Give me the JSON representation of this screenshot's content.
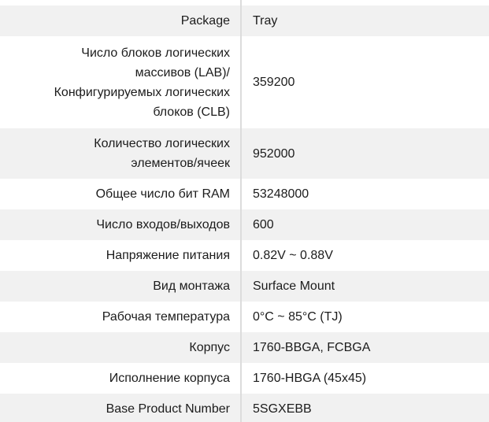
{
  "colors": {
    "row_alt_bg": "#f1f1f1",
    "divider": "#dcdcdc",
    "text": "#1c1c1c"
  },
  "specs": {
    "rows": [
      {
        "label": "Package",
        "value": "Tray"
      },
      {
        "label": "Число блоков логических\nмассивов (LAB)/\nКонфигурируемых логических\nблоков (CLB)",
        "value": "359200"
      },
      {
        "label": "Количество логических\nэлементов/ячеек",
        "value": "952000"
      },
      {
        "label": "Общее число бит RAM",
        "value": "53248000"
      },
      {
        "label": "Число входов/выходов",
        "value": "600"
      },
      {
        "label": "Напряжение питания",
        "value": "0.82V ~ 0.88V"
      },
      {
        "label": "Вид монтажа",
        "value": "Surface Mount"
      },
      {
        "label": "Рабочая температура",
        "value": "0°C ~ 85°C (TJ)"
      },
      {
        "label": "Корпус",
        "value": "1760-BBGA, FCBGA"
      },
      {
        "label": "Исполнение корпуса",
        "value": "1760-HBGA (45x45)"
      },
      {
        "label": "Base Product Number",
        "value": "5SGXEBB"
      }
    ]
  }
}
